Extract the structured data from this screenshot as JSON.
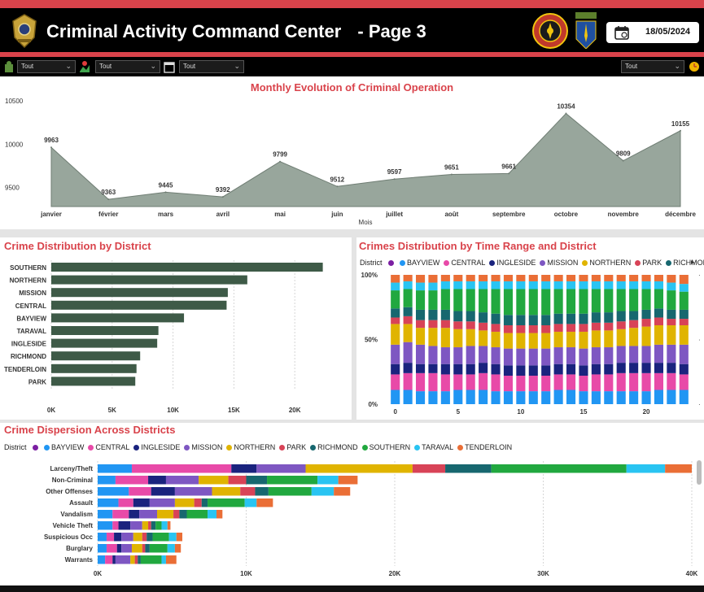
{
  "header": {
    "title": "Criminal Activity Command Center",
    "page": "- Page 3",
    "date": "18/05/2024"
  },
  "filters": [
    {
      "value": "Tout"
    },
    {
      "value": "Tout"
    },
    {
      "value": "Tout"
    },
    {
      "value": "Tout"
    }
  ],
  "colors": {
    "accent": "#d9434b",
    "area": "#98a69c",
    "bars": "#3e5a47"
  },
  "districtColors": {
    "BAYVIEW": "#2196f3",
    "CENTRAL": "#e84aa8",
    "INGLESIDE": "#1a237e",
    "MISSION": "#7e57c2",
    "NORTHERN": "#e0b400",
    "PARK": "#d84357",
    "RICHMOND": "#17676f",
    "SOUTHERN": "#21a83f",
    "TARAVAL": "#29c4f2",
    "TENDERLOIN": "#ea6e36"
  },
  "monthly": {
    "title": "Monthly Evolution of Criminal Operation",
    "chart_data": {
      "type": "area",
      "categories": [
        "janvier",
        "février",
        "mars",
        "avril",
        "mai",
        "juin",
        "juillet",
        "août",
        "septembre",
        "octobre",
        "novembre",
        "décembre"
      ],
      "values": [
        9963,
        9363,
        9445,
        9392,
        9799,
        9512,
        9597,
        9651,
        9661,
        10354,
        9809,
        10155
      ],
      "xlabel": "Mois",
      "ylabel": "",
      "yticks": [
        "9500",
        "10000",
        "10500"
      ],
      "ylim": [
        9280,
        10500
      ]
    }
  },
  "district": {
    "title": "Crime Distribution by District",
    "chart_data": {
      "type": "bar",
      "categories": [
        "SOUTHERN",
        "NORTHERN",
        "MISSION",
        "CENTRAL",
        "BAYVIEW",
        "TARAVAL",
        "INGLESIDE",
        "RICHMOND",
        "TENDERLOIN",
        "PARK"
      ],
      "values": [
        22300,
        16100,
        14500,
        14400,
        10900,
        8800,
        8700,
        7300,
        7000,
        6900
      ],
      "xticks": [
        "0K",
        "5K",
        "10K",
        "15K",
        "20K"
      ],
      "xlim": [
        0,
        25000
      ]
    }
  },
  "timeRange": {
    "title": "Crimes Distribution by Time Range and District",
    "legendTitle": "District",
    "legend": [
      "BAYVIEW",
      "CENTRAL",
      "INGLESIDE",
      "MISSION",
      "NORTHERN",
      "PARK",
      "RICHMOND"
    ],
    "chart_data": {
      "type": "bar",
      "stacked": "100%",
      "x": [
        0,
        1,
        2,
        3,
        4,
        5,
        6,
        7,
        8,
        9,
        10,
        11,
        12,
        13,
        14,
        15,
        16,
        17,
        18,
        19,
        20,
        21,
        22,
        23
      ],
      "xticks": [
        "0",
        "5",
        "10",
        "15",
        "20"
      ],
      "yticks": [
        "0%",
        "50%",
        "100%"
      ],
      "series": [
        {
          "name": "BAYVIEW",
          "values": [
            11,
            11,
            10,
            10,
            10,
            11,
            11,
            11,
            10,
            10,
            10,
            10,
            10,
            11,
            11,
            10,
            10,
            10,
            10,
            10,
            10,
            11,
            11,
            11
          ]
        },
        {
          "name": "CENTRAL",
          "values": [
            12,
            13,
            14,
            14,
            13,
            12,
            12,
            13,
            13,
            12,
            12,
            12,
            12,
            12,
            12,
            12,
            13,
            13,
            14,
            14,
            14,
            13,
            13,
            12
          ]
        },
        {
          "name": "INGLESIDE",
          "values": [
            8,
            8,
            7,
            7,
            8,
            8,
            8,
            8,
            8,
            8,
            8,
            8,
            8,
            8,
            8,
            8,
            8,
            8,
            8,
            8,
            8,
            8,
            8,
            8
          ]
        },
        {
          "name": "MISSION",
          "values": [
            15,
            16,
            15,
            14,
            13,
            13,
            14,
            13,
            13,
            13,
            13,
            13,
            13,
            13,
            13,
            13,
            13,
            13,
            13,
            13,
            13,
            14,
            14,
            15
          ]
        },
        {
          "name": "NORTHERN",
          "values": [
            16,
            14,
            13,
            14,
            15,
            14,
            13,
            12,
            12,
            12,
            12,
            12,
            12,
            12,
            12,
            13,
            13,
            13,
            13,
            14,
            15,
            15,
            15,
            15
          ]
        },
        {
          "name": "PARK",
          "values": [
            5,
            6,
            6,
            6,
            6,
            6,
            6,
            6,
            6,
            6,
            6,
            6,
            6,
            6,
            6,
            6,
            6,
            6,
            6,
            6,
            6,
            6,
            5,
            5
          ]
        },
        {
          "name": "RICHMOND",
          "values": [
            7,
            7,
            8,
            8,
            8,
            8,
            8,
            8,
            8,
            8,
            8,
            8,
            8,
            8,
            8,
            8,
            8,
            8,
            8,
            7,
            7,
            7,
            7,
            7
          ]
        },
        {
          "name": "SOUTHERN",
          "values": [
            14,
            14,
            15,
            15,
            16,
            17,
            17,
            18,
            19,
            20,
            20,
            20,
            20,
            19,
            19,
            19,
            18,
            18,
            17,
            17,
            16,
            15,
            15,
            14
          ]
        },
        {
          "name": "TARAVAL",
          "values": [
            6,
            6,
            6,
            6,
            6,
            6,
            6,
            6,
            6,
            6,
            6,
            6,
            6,
            6,
            6,
            6,
            6,
            6,
            6,
            6,
            6,
            6,
            6,
            6
          ]
        },
        {
          "name": "TENDERLOIN",
          "values": [
            6,
            5,
            6,
            6,
            5,
            5,
            5,
            5,
            5,
            5,
            5,
            5,
            5,
            5,
            5,
            5,
            5,
            5,
            5,
            5,
            5,
            5,
            6,
            7
          ]
        }
      ]
    }
  },
  "dispersion": {
    "title": "Crime Dispersion Across Districts",
    "legendTitle": "District",
    "legend": [
      "BAYVIEW",
      "CENTRAL",
      "INGLESIDE",
      "MISSION",
      "NORTHERN",
      "PARK",
      "RICHMOND",
      "SOUTHERN",
      "TARAVAL",
      "TENDERLOIN"
    ],
    "chart_data": {
      "type": "bar",
      "stacked": true,
      "categories": [
        "Larceny/Theft",
        "Non-Criminal",
        "Other Offenses",
        "Assault",
        "Vandalism",
        "Vehicle Theft",
        "Suspicious Occ",
        "Burglary",
        "Warrants"
      ],
      "xticks": [
        "0K",
        "10K",
        "20K",
        "30K",
        "40K"
      ],
      "xlim": [
        0,
        40000
      ],
      "series": [
        {
          "name": "BAYVIEW",
          "values": [
            2300,
            1200,
            2100,
            1400,
            1000,
            1000,
            600,
            600,
            500
          ]
        },
        {
          "name": "CENTRAL",
          "values": [
            6700,
            2200,
            1500,
            1000,
            1100,
            400,
            500,
            700,
            500
          ]
        },
        {
          "name": "INGLESIDE",
          "values": [
            1700,
            1200,
            1600,
            1100,
            700,
            800,
            500,
            300,
            200
          ]
        },
        {
          "name": "MISSION",
          "values": [
            3300,
            2200,
            2500,
            1700,
            1200,
            800,
            800,
            700,
            1000
          ]
        },
        {
          "name": "NORTHERN",
          "values": [
            7200,
            2000,
            1900,
            1300,
            1100,
            400,
            600,
            700,
            300
          ]
        },
        {
          "name": "PARK",
          "values": [
            2200,
            1200,
            1000,
            500,
            400,
            200,
            300,
            200,
            200
          ]
        },
        {
          "name": "RICHMOND",
          "values": [
            3100,
            1400,
            900,
            400,
            500,
            300,
            400,
            300,
            200
          ]
        },
        {
          "name": "SOUTHERN",
          "values": [
            9100,
            3400,
            2900,
            2500,
            1400,
            400,
            1100,
            1200,
            1400
          ]
        },
        {
          "name": "TARAVAL",
          "values": [
            2600,
            1400,
            1500,
            800,
            600,
            400,
            500,
            500,
            300
          ]
        },
        {
          "name": "TENDERLOIN",
          "values": [
            1800,
            1300,
            1100,
            1100,
            400,
            200,
            400,
            400,
            700
          ]
        }
      ]
    }
  }
}
